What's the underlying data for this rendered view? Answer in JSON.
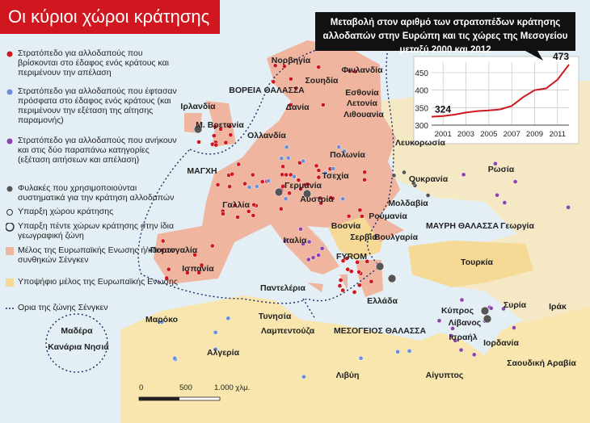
{
  "header": {
    "title": "Οι κύριοι χώροι κράτησης"
  },
  "legend": {
    "items": [
      "Στρατόπεδο για αλλοδαπούς που βρίσκονται στο έδαφος ενός κράτους και περιμένουν την απέλαση",
      "Στρατόπεδο για αλλοδαπούς που έφτασαν πρόσφατα στο έδαφος ενός κράτους (και περιμένουν την εξέταση της αίτησης παραμονής)",
      "Στρατόπεδο για αλλοδαπούς που ανήκουν και στις δύο παραπάνω κατηγορίες (εξέταση αιτήσεων και απέλαση)",
      "Φυλακές που χρησιμοποιούνται συστηματικά για την κράτηση αλλοδαπών",
      "Υπαρξη χώρου κράτησης",
      "Υπαρξη πέντε χώρων κράτησης στην ίδια γεωγραφική ζώνη",
      "Μέλος της Ευρωπαϊκής Ενωσης ή/και των συνθηκών Σένγκεν",
      "Υποψήφιο μέλος της Ευρωπαϊκής Ενωσης",
      "Ορια της ζώνης Σένγκεν"
    ]
  },
  "map": {
    "labels": [
      "Νορβηγία",
      "Φινλανδία",
      "Σουηδία",
      "Εσθονία",
      "Λετονία",
      "Λιθουανία",
      "Ιρλανδία",
      "Μ. Βρετανία",
      "ΒΟΡΕΙΑ ΘΑΛΑΣΣΑ",
      "Δανία",
      "Ολλανδία",
      "Λευκορωσία",
      "Ρωσία",
      "Πολωνία",
      "Γερμανία",
      "Τσεχία",
      "Αυστρία",
      "ΜΑΓΧΗ",
      "Γαλλία",
      "Ουκρανία",
      "Μολδαβία",
      "Ρουμανία",
      "Βοσνία",
      "Σερβία",
      "Βουλγαρία",
      "ΜΑΥΡΗ ΘΑΛΑΣΣΑ",
      "Γεωργία",
      "Ιταλία",
      "Πορτογαλία",
      "Ισπανία",
      "FYROM",
      "Τουρκία",
      "Ελλάδα",
      "Παντελέρια",
      "Τυνησία",
      "Λαμπεντούζα",
      "ΜΕΣΟΓΕΙΟΣ ΘΑΛΑΣΣΑ",
      "Κύπρος",
      "Συρία",
      "Λίβανος",
      "Ισραήλ",
      "Ιορδανία",
      "Ιράκ",
      "Μαρόκο",
      "Αλγερία",
      "Λιβύη",
      "Αίγυπτος",
      "Σαουδική Αραβία",
      "Μαδέρα",
      "Κανάρια Νησιά"
    ]
  },
  "scale": {
    "labels": [
      "0",
      "500",
      "1.000 χλμ."
    ]
  },
  "chart_data": {
    "type": "line",
    "title": "Μεταβολή στον αριθμό των στρατοπέδων κράτησης αλλοδαπών στην Ευρώπη και τις χώρες της Μεσογείου μεταξύ 2000 και 2012",
    "x": [
      2000,
      2001,
      2002,
      2003,
      2004,
      2005,
      2006,
      2007,
      2008,
      2009,
      2010,
      2011,
      2012
    ],
    "series": [
      {
        "color": "#d0161e",
        "values": [
          324,
          326,
          330,
          336,
          340,
          342,
          345,
          355,
          380,
          400,
          405,
          430,
          473
        ]
      }
    ],
    "xlim": [
      2000,
      2012
    ],
    "ylim": [
      300,
      480
    ],
    "xticks": [
      2001,
      2003,
      2005,
      2007,
      2009,
      2011
    ],
    "yticks": [
      300,
      350,
      400,
      450
    ],
    "grid": true
  }
}
